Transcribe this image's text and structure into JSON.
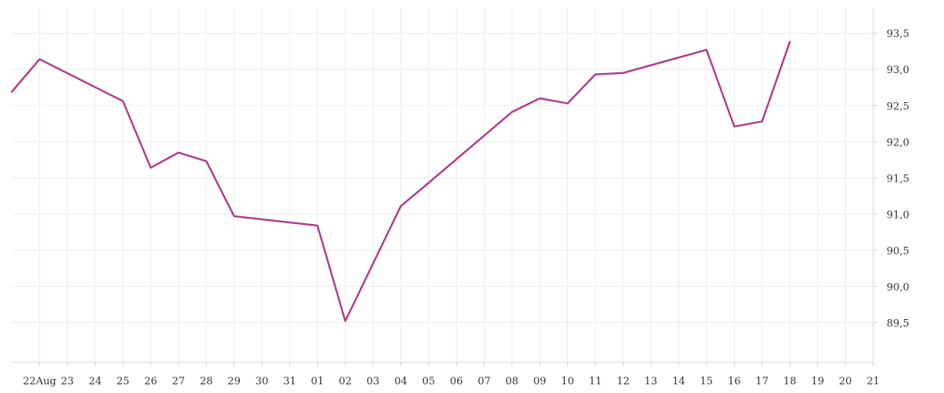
{
  "chart_data": {
    "type": "line",
    "title": "",
    "xlabel": "",
    "ylabel": "",
    "x_tick_labels": [
      "22Aug",
      "23",
      "24",
      "25",
      "26",
      "27",
      "28",
      "29",
      "30",
      "31",
      "01",
      "02",
      "03",
      "04",
      "05",
      "06",
      "07",
      "08",
      "09",
      "10",
      "11",
      "12",
      "13",
      "14",
      "15",
      "16",
      "17",
      "18",
      "19",
      "20",
      "21"
    ],
    "y_ticks": [
      "89,5",
      "90,0",
      "90,5",
      "91,0",
      "91,5",
      "92,0",
      "92,5",
      "93,0",
      "93,5"
    ],
    "y_tick_values": [
      89.5,
      90.0,
      90.5,
      91.0,
      91.5,
      92.0,
      92.5,
      93.0,
      93.5
    ],
    "ylim": [
      88.95,
      93.85
    ],
    "xlim": [
      "2022-08-21",
      "2022-09-21"
    ],
    "grid": true,
    "y_axis_position": "right",
    "series": [
      {
        "color": "#b03a8c",
        "points": [
          {
            "x": "2022-08-21",
            "y": 92.69
          },
          {
            "x": "2022-08-22",
            "y": 93.14
          },
          {
            "x": "2022-08-25",
            "y": 92.56
          },
          {
            "x": "2022-08-26",
            "y": 91.64
          },
          {
            "x": "2022-08-27",
            "y": 91.85
          },
          {
            "x": "2022-08-28",
            "y": 91.73
          },
          {
            "x": "2022-08-29",
            "y": 90.97
          },
          {
            "x": "2022-09-01",
            "y": 90.84
          },
          {
            "x": "2022-09-02",
            "y": 89.52
          },
          {
            "x": "2022-09-04",
            "y": 91.11
          },
          {
            "x": "2022-09-05",
            "y": 91.43
          },
          {
            "x": "2022-09-08",
            "y": 92.41
          },
          {
            "x": "2022-09-09",
            "y": 92.6
          },
          {
            "x": "2022-09-10",
            "y": 92.53
          },
          {
            "x": "2022-09-11",
            "y": 92.93
          },
          {
            "x": "2022-09-12",
            "y": 92.95
          },
          {
            "x": "2022-09-15",
            "y": 93.27
          },
          {
            "x": "2022-09-16",
            "y": 92.21
          },
          {
            "x": "2022-09-17",
            "y": 92.28
          },
          {
            "x": "2022-09-18",
            "y": 93.38
          }
        ]
      }
    ]
  }
}
